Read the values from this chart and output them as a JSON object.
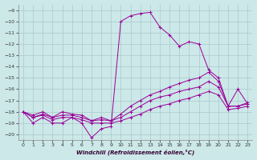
{
  "xlabel": "Windchill (Refroidissement éolien,°C)",
  "xlim": [
    -0.5,
    23.5
  ],
  "ylim": [
    -20.5,
    -8.5
  ],
  "yticks": [
    -9,
    -10,
    -11,
    -12,
    -13,
    -14,
    -15,
    -16,
    -17,
    -18,
    -19,
    -20
  ],
  "xticks": [
    0,
    1,
    2,
    3,
    4,
    5,
    6,
    7,
    8,
    9,
    10,
    11,
    12,
    13,
    14,
    15,
    16,
    17,
    18,
    19,
    20,
    21,
    22,
    23
  ],
  "bg_color": "#cce8e8",
  "grid_color": "#aac8cc",
  "line_color": "#990099",
  "series": [
    [
      -18.0,
      -19.0,
      -18.5,
      -19.0,
      -19.0,
      -18.5,
      -19.0,
      -20.3,
      -19.5,
      -19.3,
      -10.0,
      -9.5,
      -9.3,
      -9.2,
      -10.5,
      -11.2,
      -12.2,
      -11.8,
      -12.0,
      -14.3,
      -15.0,
      -17.5,
      -16.0,
      -17.3
    ],
    [
      -18.0,
      -18.3,
      -18.0,
      -18.5,
      -18.0,
      -18.2,
      -18.3,
      -18.8,
      -18.5,
      -18.8,
      -18.2,
      -17.5,
      -17.0,
      -16.5,
      -16.2,
      -15.8,
      -15.5,
      -15.2,
      -15.0,
      -14.5,
      -15.3,
      -17.5,
      -17.5,
      -17.2
    ],
    [
      -18.0,
      -18.5,
      -18.2,
      -18.5,
      -18.3,
      -18.3,
      -18.5,
      -18.8,
      -18.7,
      -18.8,
      -18.5,
      -18.0,
      -17.5,
      -17.0,
      -16.7,
      -16.5,
      -16.2,
      -16.0,
      -15.8,
      -15.3,
      -15.8,
      -17.5,
      -17.5,
      -17.3
    ],
    [
      -18.0,
      -18.5,
      -18.3,
      -18.7,
      -18.5,
      -18.5,
      -18.7,
      -19.0,
      -19.0,
      -19.0,
      -18.8,
      -18.5,
      -18.2,
      -17.8,
      -17.5,
      -17.3,
      -17.0,
      -16.8,
      -16.5,
      -16.2,
      -16.5,
      -17.8,
      -17.7,
      -17.5
    ]
  ]
}
